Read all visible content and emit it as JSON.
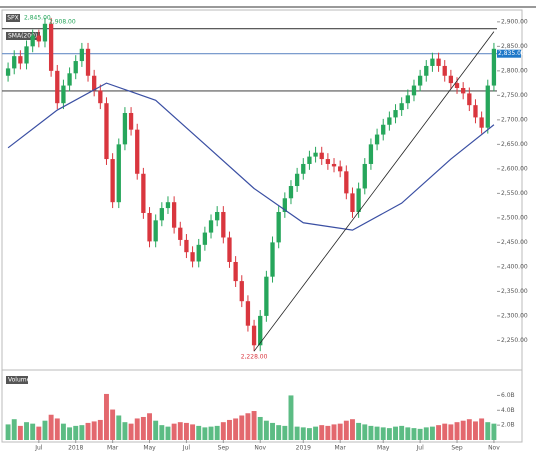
{
  "chart_data": {
    "type": "candlestick",
    "symbol": "SPX",
    "quote_label": "2,845.00",
    "indicator": "SMA(200)",
    "volume_title": "Volume",
    "up_color": "#26a65b",
    "down_color": "#d9363e",
    "candles": [
      [
        2790,
        2817,
        2778,
        2805
      ],
      [
        2805,
        2842,
        2793,
        2830
      ],
      [
        2830,
        2842,
        2803,
        2815
      ],
      [
        2815,
        2862,
        2803,
        2850
      ],
      [
        2850,
        2884,
        2838,
        2872
      ],
      [
        2872,
        2884,
        2848,
        2860
      ],
      [
        2860,
        2908,
        2848,
        2896
      ],
      [
        2896,
        2908,
        2788,
        2800
      ],
      [
        2800,
        2812,
        2722,
        2734
      ],
      [
        2734,
        2782,
        2722,
        2770
      ],
      [
        2770,
        2807,
        2758,
        2795
      ],
      [
        2795,
        2832,
        2783,
        2820
      ],
      [
        2820,
        2857,
        2808,
        2845
      ],
      [
        2845,
        2857,
        2778,
        2790
      ],
      [
        2790,
        2802,
        2748,
        2760
      ],
      [
        2760,
        2772,
        2722,
        2734
      ],
      [
        2734,
        2746,
        2608,
        2620
      ],
      [
        2620,
        2632,
        2520,
        2532
      ],
      [
        2532,
        2662,
        2520,
        2650
      ],
      [
        2650,
        2726,
        2638,
        2714
      ],
      [
        2714,
        2726,
        2668,
        2680
      ],
      [
        2680,
        2692,
        2578,
        2590
      ],
      [
        2590,
        2602,
        2498,
        2510
      ],
      [
        2510,
        2522,
        2440,
        2452
      ],
      [
        2452,
        2507,
        2440,
        2495
      ],
      [
        2495,
        2532,
        2483,
        2520
      ],
      [
        2520,
        2544,
        2508,
        2532
      ],
      [
        2532,
        2544,
        2468,
        2480
      ],
      [
        2480,
        2492,
        2443,
        2455
      ],
      [
        2455,
        2467,
        2418,
        2430
      ],
      [
        2430,
        2442,
        2399,
        2411
      ],
      [
        2411,
        2457,
        2399,
        2445
      ],
      [
        2445,
        2482,
        2433,
        2470
      ],
      [
        2470,
        2507,
        2458,
        2495
      ],
      [
        2495,
        2524,
        2483,
        2512
      ],
      [
        2512,
        2524,
        2448,
        2460
      ],
      [
        2460,
        2472,
        2398,
        2410
      ],
      [
        2410,
        2422,
        2359,
        2371
      ],
      [
        2371,
        2383,
        2318,
        2330
      ],
      [
        2330,
        2342,
        2268,
        2280
      ],
      [
        2280,
        2292,
        2228,
        2240
      ],
      [
        2240,
        2312,
        2228,
        2300
      ],
      [
        2300,
        2392,
        2288,
        2380
      ],
      [
        2380,
        2462,
        2368,
        2450
      ],
      [
        2450,
        2524,
        2438,
        2512
      ],
      [
        2512,
        2552,
        2500,
        2540
      ],
      [
        2540,
        2577,
        2528,
        2565
      ],
      [
        2565,
        2602,
        2553,
        2590
      ],
      [
        2590,
        2622,
        2578,
        2610
      ],
      [
        2610,
        2637,
        2598,
        2625
      ],
      [
        2625,
        2645,
        2613,
        2633
      ],
      [
        2633,
        2645,
        2608,
        2620
      ],
      [
        2620,
        2632,
        2598,
        2610
      ],
      [
        2610,
        2622,
        2593,
        2605
      ],
      [
        2605,
        2617,
        2583,
        2595
      ],
      [
        2595,
        2607,
        2538,
        2550
      ],
      [
        2550,
        2562,
        2500,
        2512
      ],
      [
        2512,
        2572,
        2500,
        2560
      ],
      [
        2560,
        2622,
        2548,
        2610
      ],
      [
        2610,
        2662,
        2598,
        2650
      ],
      [
        2650,
        2682,
        2638,
        2670
      ],
      [
        2670,
        2702,
        2658,
        2690
      ],
      [
        2690,
        2717,
        2678,
        2705
      ],
      [
        2705,
        2732,
        2693,
        2720
      ],
      [
        2720,
        2746,
        2708,
        2734
      ],
      [
        2734,
        2762,
        2722,
        2750
      ],
      [
        2750,
        2782,
        2738,
        2770
      ],
      [
        2770,
        2802,
        2758,
        2790
      ],
      [
        2790,
        2822,
        2778,
        2810
      ],
      [
        2810,
        2837,
        2798,
        2825
      ],
      [
        2825,
        2837,
        2798,
        2810
      ],
      [
        2810,
        2822,
        2778,
        2790
      ],
      [
        2790,
        2802,
        2763,
        2775
      ],
      [
        2775,
        2787,
        2753,
        2765
      ],
      [
        2765,
        2777,
        2742,
        2754
      ],
      [
        2754,
        2766,
        2718,
        2730
      ],
      [
        2730,
        2742,
        2693,
        2705
      ],
      [
        2705,
        2717,
        2672,
        2684
      ],
      [
        2684,
        2782,
        2672,
        2770
      ],
      [
        2770,
        2857,
        2758,
        2845
      ]
    ],
    "volumes": [
      2.1,
      2.8,
      1.9,
      2.4,
      2.2,
      1.8,
      2.6,
      3.4,
      2.9,
      2.2,
      1.7,
      1.9,
      2.0,
      2.3,
      2.5,
      2.7,
      6.2,
      4.1,
      3.3,
      2.4,
      2.2,
      2.9,
      3.1,
      3.6,
      2.6,
      2.0,
      1.8,
      2.2,
      2.4,
      2.3,
      2.1,
      1.9,
      1.7,
      1.8,
      1.9,
      2.4,
      2.7,
      2.9,
      3.3,
      3.6,
      3.9,
      3.1,
      2.6,
      2.3,
      2.0,
      1.9,
      6.0,
      1.8,
      1.7,
      1.6,
      1.8,
      2.0,
      1.9,
      2.1,
      2.2,
      2.6,
      2.8,
      2.3,
      2.1,
      1.9,
      1.8,
      1.7,
      1.6,
      1.8,
      1.9,
      1.7,
      1.6,
      1.5,
      1.7,
      1.8,
      2.0,
      2.2,
      2.1,
      2.4,
      2.6,
      2.8,
      2.5,
      2.9,
      2.4,
      2.2
    ],
    "ma": {
      "x": [
        0,
        8,
        16,
        24,
        32,
        40,
        48,
        56,
        64,
        72,
        79
      ],
      "values": [
        2643,
        2720,
        2775,
        2740,
        2650,
        2560,
        2490,
        2475,
        2530,
        2620,
        2690
      ],
      "color": "#3a4fa3"
    },
    "hlines": [
      {
        "value": 2886,
        "color": "#444"
      },
      {
        "value": 2835,
        "color": "#6a8fc7"
      },
      {
        "value": 2759,
        "color": "#555"
      }
    ],
    "price_label": {
      "value": 2835,
      "label": "2,835.00",
      "color": "#1f78c8"
    },
    "trendline": {
      "x": [
        40,
        79
      ],
      "values": [
        2228,
        2880
      ]
    },
    "high_label": {
      "index": 6,
      "value": 2908,
      "label": "2,908.00"
    },
    "low_label": {
      "index": 40,
      "value": 2228,
      "label": "2,228.00"
    },
    "ylim": [
      2210,
      2916
    ],
    "yticks": [
      {
        "value": 2250,
        "label": "2,250.00"
      },
      {
        "value": 2300,
        "label": "2,300.00"
      },
      {
        "value": 2350,
        "label": "2,350.00"
      },
      {
        "value": 2400,
        "label": "2,400.00"
      },
      {
        "value": 2450,
        "label": "2,450.00"
      },
      {
        "value": 2500,
        "label": "2,500.00"
      },
      {
        "value": 2550,
        "label": "2,550.00"
      },
      {
        "value": 2600,
        "label": "2,600.00"
      },
      {
        "value": 2650,
        "label": "2,650.00"
      },
      {
        "value": 2700,
        "label": "2,700.00"
      },
      {
        "value": 2750,
        "label": "2,750.00"
      },
      {
        "value": 2800,
        "label": "2,800.00"
      },
      {
        "value": 2850,
        "label": "2,850.00"
      },
      {
        "value": 2900,
        "label": "2,900.00"
      }
    ],
    "vlim": [
      0,
      7
    ],
    "vticks": [
      {
        "value": 2,
        "label": "2.0B"
      },
      {
        "value": 4,
        "label": "4.0B"
      },
      {
        "value": 6,
        "label": "6.0B"
      }
    ],
    "xticks": [
      {
        "value": 5,
        "label": "Jul"
      },
      {
        "value": 11,
        "label": "2018"
      },
      {
        "value": 17,
        "label": "Mar"
      },
      {
        "value": 23,
        "label": "May"
      },
      {
        "value": 29,
        "label": "Jul"
      },
      {
        "value": 35,
        "label": "Sep"
      },
      {
        "value": 41,
        "label": "Nov"
      },
      {
        "value": 48,
        "label": "2019"
      },
      {
        "value": 54,
        "label": "Mar"
      },
      {
        "value": 61,
        "label": "May"
      },
      {
        "value": 67,
        "label": "Jul"
      },
      {
        "value": 73,
        "label": "Sep"
      },
      {
        "value": 79,
        "label": "Nov"
      }
    ]
  }
}
